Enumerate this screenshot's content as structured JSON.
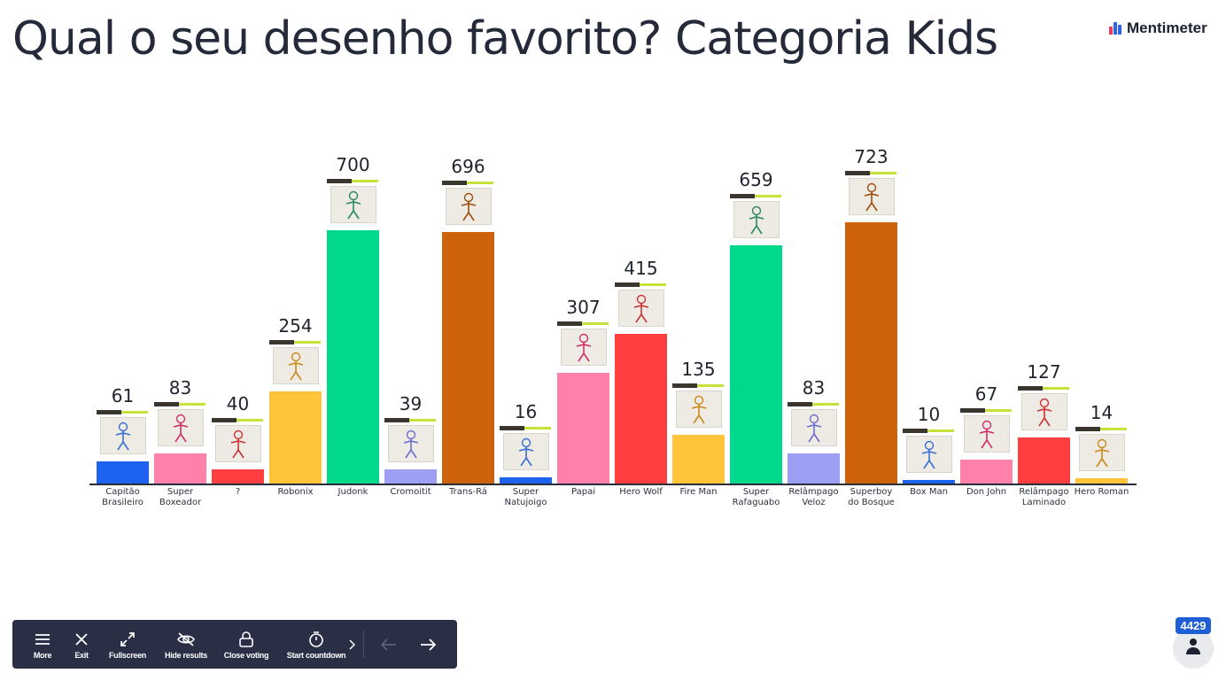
{
  "title": "Qual o seu desenho favorito? Categoria Kids",
  "brand": {
    "name": "Mentimeter",
    "colors": [
      "#e4405f",
      "#2f63e8",
      "#1c2030"
    ]
  },
  "chart_data": {
    "type": "bar",
    "categories": [
      "Capitão Brasileiro",
      "Super Boxeador",
      "?",
      "Robonix",
      "Judonk",
      "Cromoitit",
      "Trans-Rá",
      "Super Natujoigo",
      "Papai",
      "Hero Wolf",
      "Fire Man",
      "Super Rafaguabo",
      "Relâmpago Veloz",
      "Superboy do Bosque",
      "Box Man",
      "Don John",
      "Relâmpago Laminado",
      "Hero Roman"
    ],
    "category_lines": [
      [
        "Capitão",
        "Brasileiro"
      ],
      [
        "Super",
        "Boxeador"
      ],
      [
        "?"
      ],
      [
        "Robonix"
      ],
      [
        "Judonk"
      ],
      [
        "Cromoitit"
      ],
      [
        "Trans-Rá"
      ],
      [
        "Super",
        "Natujoigo"
      ],
      [
        "Papai"
      ],
      [
        "Hero Wolf"
      ],
      [
        "Fire Man"
      ],
      [
        "Super",
        "Rafaguabo"
      ],
      [
        "Relâmpago",
        "Veloz"
      ],
      [
        "Superboy",
        "do Bosque"
      ],
      [
        "Box Man"
      ],
      [
        "Don John"
      ],
      [
        "Relâmpago",
        "Laminado"
      ],
      [
        "Hero Roman"
      ]
    ],
    "values": [
      61,
      83,
      40,
      254,
      700,
      39,
      696,
      16,
      307,
      415,
      135,
      659,
      83,
      723,
      10,
      67,
      127,
      14
    ],
    "colors": [
      "#1e63f0",
      "#ff80ab",
      "#ff3f3f",
      "#ffc43a",
      "#00d98b",
      "#9d9ff5",
      "#cc6209",
      "#1e63f0",
      "#ff80ab",
      "#ff3f3f",
      "#ffc43a",
      "#00d98b",
      "#9d9ff5",
      "#cc6209",
      "#1e63f0",
      "#ff80ab",
      "#ff3f3f",
      "#ffc43a"
    ],
    "has_image": [
      true,
      true,
      true,
      true,
      true,
      true,
      true,
      true,
      true,
      true,
      true,
      true,
      true,
      true,
      true,
      true,
      true,
      true
    ],
    "xlabel": "",
    "ylabel": "",
    "ylim": [
      0,
      723
    ],
    "grid": false,
    "legend": "none"
  },
  "toolbar": {
    "items": [
      {
        "label": "More",
        "icon": "menu-icon"
      },
      {
        "label": "Exit",
        "icon": "close-icon"
      },
      {
        "label": "Fullscreen",
        "icon": "fullscreen-icon"
      },
      {
        "label": "Hide results",
        "icon": "eye-off-icon"
      },
      {
        "label": "Close voting",
        "icon": "lock-icon"
      },
      {
        "label": "Start countdown",
        "icon": "timer-icon"
      }
    ],
    "expand_icon": "chevron-right-icon",
    "prev_icon": "arrow-left-icon",
    "next_icon": "arrow-right-icon"
  },
  "participants": {
    "count": "4429",
    "icon": "person-icon"
  }
}
